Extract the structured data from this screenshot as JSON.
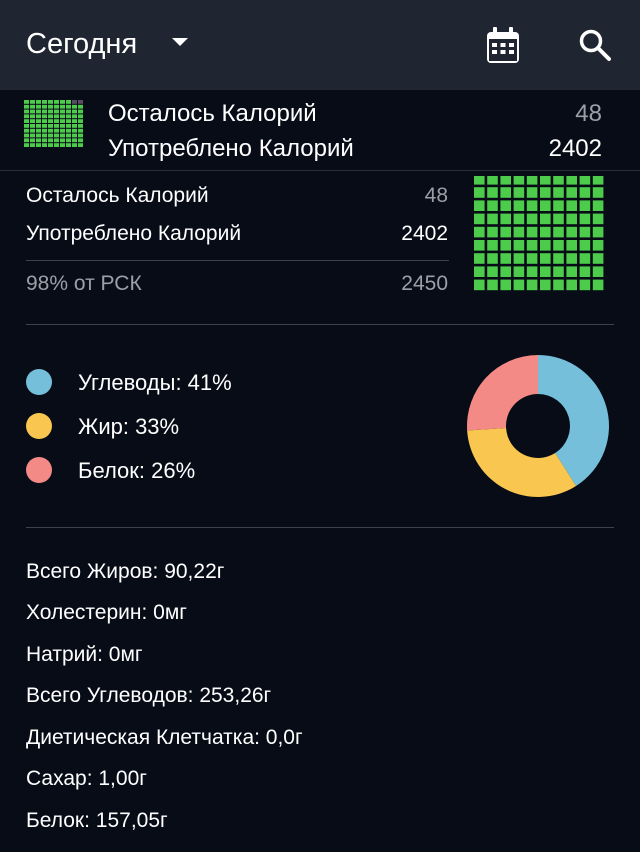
{
  "appbar": {
    "title": "Сегодня",
    "icons": [
      "chevron-down-icon",
      "calendar-icon",
      "search-icon"
    ]
  },
  "sticky": {
    "remaining_label": "Осталось Калорий",
    "remaining_value": "48",
    "consumed_label": "Употреблено Калорий",
    "consumed_value": "2402"
  },
  "summary": {
    "remaining_label": "Осталось Калорий",
    "remaining_value": "48",
    "consumed_label": "Употреблено Калорий",
    "consumed_value": "2402",
    "rdi_label": "98% от РСК",
    "rdi_value": "2450",
    "consumed_fraction": 0.98
  },
  "macros": {
    "items": [
      {
        "label": "Углеводы: 41%",
        "percent": 41,
        "color": "#75bfdb"
      },
      {
        "label": "Жир: 33%",
        "percent": 33,
        "color": "#f9c74f"
      },
      {
        "label": "Белок: 26%",
        "percent": 26,
        "color": "#f38a86"
      }
    ]
  },
  "nutrients": [
    "Всего Жиров: 90,22г",
    "Холестерин: 0мг",
    "Натрий: 0мг",
    "Всего Углеводов: 253,26г",
    "Диетическая Клетчатка: 0,0г",
    "Сахар: 1,00г",
    "Белок: 157,05г"
  ],
  "colors": {
    "appbar": "#1f2631",
    "background": "#080c17",
    "grid_filled": "#4ccc4a",
    "grid_empty": "#5a4a64",
    "muted_text": "#9aa0a8"
  }
}
